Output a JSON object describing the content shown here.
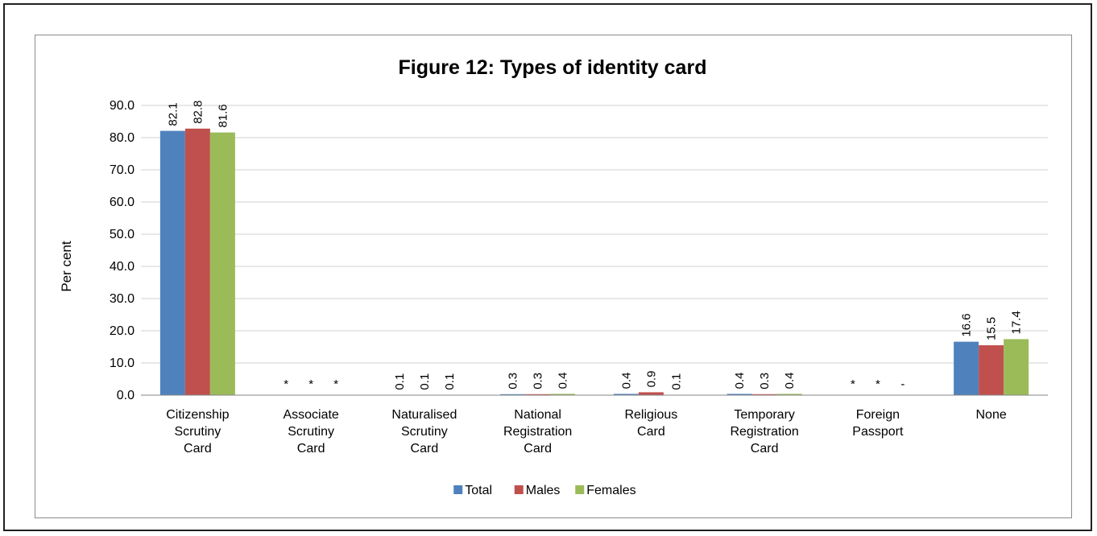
{
  "chart_data": {
    "type": "bar",
    "title": "Figure 12:  Types of identity card",
    "ylabel": "Per cent",
    "xlabel": "",
    "ylim": [
      0,
      90
    ],
    "yticks": [
      "0.0",
      "10.0",
      "20.0",
      "30.0",
      "40.0",
      "50.0",
      "60.0",
      "70.0",
      "80.0",
      "90.0"
    ],
    "grid": true,
    "legend_position": "bottom",
    "categories": [
      [
        "Citizenship",
        "Scrutiny",
        "Card"
      ],
      [
        "Associate",
        "Scrutiny",
        "Card"
      ],
      [
        "Naturalised",
        "Scrutiny",
        "Card"
      ],
      [
        "National",
        "Registration",
        "Card"
      ],
      [
        "Religious",
        "Card"
      ],
      [
        "Temporary",
        "Registration",
        "Card"
      ],
      [
        "Foreign",
        "Passport"
      ],
      [
        "None"
      ]
    ],
    "series": [
      {
        "name": "Total",
        "color": "#4f81bd",
        "values": [
          82.1,
          0,
          0.1,
          0.3,
          0.4,
          0.4,
          0,
          16.6
        ],
        "labels": [
          "82.1",
          "*",
          "0.1",
          "0.3",
          "0.4",
          "0.4",
          "*",
          "16.6"
        ]
      },
      {
        "name": "Males",
        "color": "#c0504d",
        "values": [
          82.8,
          0,
          0.1,
          0.3,
          0.9,
          0.3,
          0,
          15.5
        ],
        "labels": [
          "82.8",
          "*",
          "0.1",
          "0.3",
          "0.9",
          "0.3",
          "*",
          "15.5"
        ]
      },
      {
        "name": "Females",
        "color": "#9bbb59",
        "values": [
          81.6,
          0,
          0.1,
          0.4,
          0.1,
          0.4,
          0,
          17.4
        ],
        "labels": [
          "81.6",
          "*",
          "0.1",
          "0.4",
          "0.1",
          "0.4",
          "-",
          "17.4"
        ]
      }
    ]
  }
}
